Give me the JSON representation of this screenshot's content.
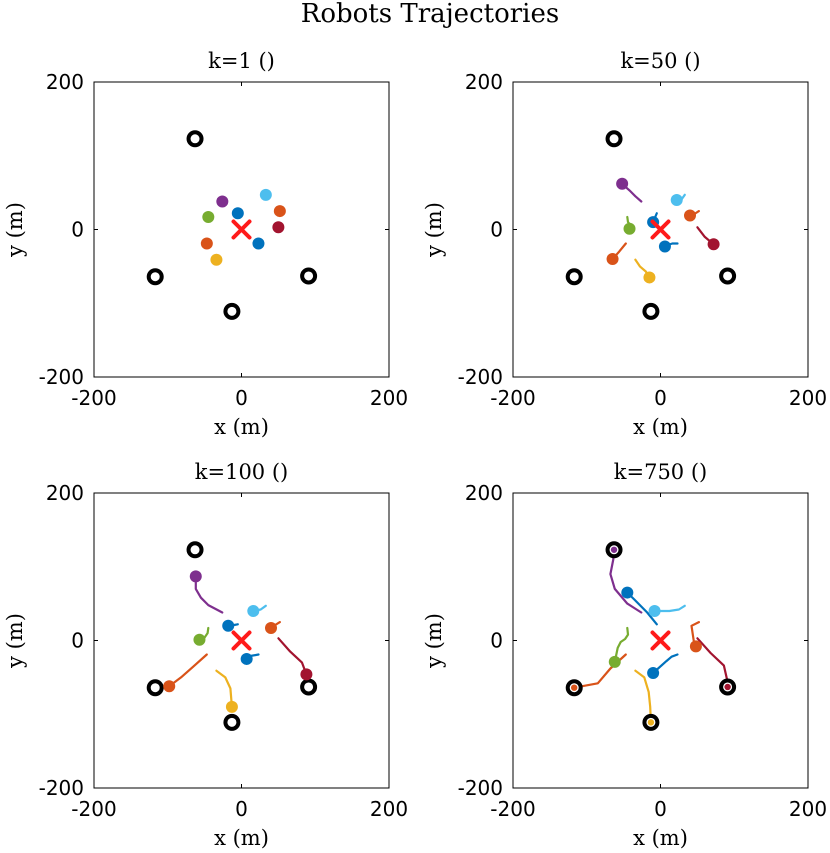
{
  "figure_title": "Robots Trajectories",
  "colors": {
    "axis": "#000000",
    "target": "#ff1a1a",
    "goal": "#000000",
    "robots": [
      "#0072bd",
      "#d95319",
      "#edb120",
      "#7e2f8e",
      "#77ac30",
      "#4dbeee",
      "#a2142f",
      "#0072bd",
      "#d95319"
    ]
  },
  "chart_data": [
    {
      "type": "scatter",
      "title": "k=1 ()",
      "xlabel": "x (m)",
      "ylabel": "y (m)",
      "xlim": [
        -200,
        200
      ],
      "ylim": [
        -200,
        200
      ],
      "xticks": [
        "-200",
        "0",
        "200"
      ],
      "yticks": [
        "-200",
        "0",
        "200"
      ],
      "target": [
        0,
        0
      ],
      "goals": [
        [
          -63,
          123
        ],
        [
          -117,
          -64
        ],
        [
          91,
          -63
        ],
        [
          -13,
          -111
        ]
      ],
      "goal_fill": [
        null,
        null,
        null,
        null
      ],
      "robots": [
        {
          "color": 0,
          "path": [
            [
              -5,
              22
            ]
          ]
        },
        {
          "color": 1,
          "path": [
            [
              52,
              25
            ]
          ]
        },
        {
          "color": 2,
          "path": [
            [
              -34,
              -41
            ]
          ]
        },
        {
          "color": 3,
          "path": [
            [
              -26,
              38
            ]
          ]
        },
        {
          "color": 4,
          "path": [
            [
              -45,
              17
            ]
          ]
        },
        {
          "color": 5,
          "path": [
            [
              33,
              47
            ]
          ]
        },
        {
          "color": 6,
          "path": [
            [
              50,
              3
            ]
          ]
        },
        {
          "color": 7,
          "path": [
            [
              23,
              -19
            ]
          ]
        },
        {
          "color": 8,
          "path": [
            [
              -47,
              -19
            ]
          ]
        }
      ]
    },
    {
      "type": "scatter",
      "title": "k=50 ()",
      "xlabel": "x (m)",
      "ylabel": "y (m)",
      "xlim": [
        -200,
        200
      ],
      "ylim": [
        -200,
        200
      ],
      "xticks": [
        "-200",
        "0",
        "200"
      ],
      "yticks": [
        "-200",
        "0",
        "200"
      ],
      "target": [
        0,
        0
      ],
      "goals": [
        [
          -63,
          123
        ],
        [
          -117,
          -64
        ],
        [
          91,
          -63
        ],
        [
          -13,
          -111
        ]
      ],
      "goal_fill": [
        null,
        null,
        null,
        null
      ],
      "robots": [
        {
          "color": 0,
          "path": [
            [
              -5,
              22
            ],
            [
              -8,
              15
            ],
            [
              -10,
              10
            ]
          ]
        },
        {
          "color": 1,
          "path": [
            [
              52,
              25
            ],
            [
              46,
              21
            ],
            [
              40,
              19
            ]
          ]
        },
        {
          "color": 2,
          "path": [
            [
              -34,
              -41
            ],
            [
              -28,
              -50
            ],
            [
              -20,
              -57
            ],
            [
              -15,
              -65
            ]
          ]
        },
        {
          "color": 3,
          "path": [
            [
              -26,
              38
            ],
            [
              -34,
              45
            ],
            [
              -42,
              53
            ],
            [
              -52,
              62
            ]
          ]
        },
        {
          "color": 4,
          "path": [
            [
              -45,
              17
            ],
            [
              -44,
              10
            ],
            [
              -40,
              5
            ],
            [
              -42,
              1
            ]
          ]
        },
        {
          "color": 5,
          "path": [
            [
              33,
              47
            ],
            [
              28,
              40
            ],
            [
              22,
              40
            ]
          ]
        },
        {
          "color": 6,
          "path": [
            [
              50,
              3
            ],
            [
              60,
              -10
            ],
            [
              72,
              -20
            ]
          ]
        },
        {
          "color": 7,
          "path": [
            [
              23,
              -19
            ],
            [
              16,
              -19
            ],
            [
              10,
              -21
            ],
            [
              6,
              -23
            ]
          ]
        },
        {
          "color": 8,
          "path": [
            [
              -47,
              -19
            ],
            [
              -56,
              -30
            ],
            [
              -65,
              -40
            ]
          ]
        }
      ]
    },
    {
      "type": "scatter",
      "title": "k=100 ()",
      "xlabel": "x (m)",
      "ylabel": "y (m)",
      "xlim": [
        -200,
        200
      ],
      "ylim": [
        -200,
        200
      ],
      "xticks": [
        "-200",
        "0",
        "200"
      ],
      "yticks": [
        "-200",
        "0",
        "200"
      ],
      "target": [
        0,
        0
      ],
      "goals": [
        [
          -63,
          123
        ],
        [
          -117,
          -64
        ],
        [
          91,
          -63
        ],
        [
          -13,
          -111
        ]
      ],
      "goal_fill": [
        null,
        null,
        null,
        null
      ],
      "robots": [
        {
          "color": 0,
          "path": [
            [
              -5,
              22
            ],
            [
              -10,
              21
            ],
            [
              -18,
              20
            ]
          ]
        },
        {
          "color": 1,
          "path": [
            [
              52,
              25
            ],
            [
              44,
              20
            ],
            [
              40,
              17
            ]
          ]
        },
        {
          "color": 2,
          "path": [
            [
              -34,
              -41
            ],
            [
              -22,
              -50
            ],
            [
              -15,
              -65
            ],
            [
              -13,
              -90
            ]
          ]
        },
        {
          "color": 3,
          "path": [
            [
              -26,
              38
            ],
            [
              -45,
              48
            ],
            [
              -55,
              58
            ],
            [
              -62,
              70
            ],
            [
              -62,
              87
            ]
          ]
        },
        {
          "color": 4,
          "path": [
            [
              -45,
              17
            ],
            [
              -46,
              10
            ],
            [
              -50,
              4
            ],
            [
              -57,
              1
            ]
          ]
        },
        {
          "color": 5,
          "path": [
            [
              33,
              47
            ],
            [
              26,
              42
            ],
            [
              16,
              40
            ]
          ]
        },
        {
          "color": 6,
          "path": [
            [
              50,
              3
            ],
            [
              66,
              -15
            ],
            [
              82,
              -30
            ],
            [
              88,
              -46
            ]
          ]
        },
        {
          "color": 7,
          "path": [
            [
              23,
              -19
            ],
            [
              12,
              -21
            ],
            [
              7,
              -25
            ]
          ]
        },
        {
          "color": 8,
          "path": [
            [
              -47,
              -19
            ],
            [
              -65,
              -35
            ],
            [
              -82,
              -50
            ],
            [
              -98,
              -62
            ]
          ]
        }
      ]
    },
    {
      "type": "scatter",
      "title": "k=750 ()",
      "xlabel": "x (m)",
      "ylabel": "y (m)",
      "xlim": [
        -200,
        200
      ],
      "ylim": [
        -200,
        200
      ],
      "xticks": [
        "-200",
        "0",
        "200"
      ],
      "yticks": [
        "-200",
        "0",
        "200"
      ],
      "target": [
        0,
        0
      ],
      "goals": [
        [
          -63,
          123
        ],
        [
          -117,
          -64
        ],
        [
          91,
          -63
        ],
        [
          -13,
          -111
        ]
      ],
      "goal_fill": [
        3,
        8,
        6,
        2
      ],
      "robots": [
        {
          "color": 0,
          "path": [
            [
              -5,
              22
            ],
            [
              -18,
              38
            ],
            [
              -35,
              55
            ],
            [
              -45,
              65
            ]
          ]
        },
        {
          "color": 1,
          "path": [
            [
              52,
              25
            ],
            [
              42,
              20
            ],
            [
              45,
              0
            ],
            [
              48,
              -8
            ]
          ]
        },
        {
          "color": 2,
          "path": [
            [
              -34,
              -41
            ],
            [
              -22,
              -50
            ],
            [
              -16,
              -70
            ],
            [
              -14,
              -90
            ],
            [
              -13,
              -111
            ]
          ]
        },
        {
          "color": 3,
          "path": [
            [
              -26,
              38
            ],
            [
              -45,
              50
            ],
            [
              -62,
              70
            ],
            [
              -68,
              90
            ],
            [
              -64,
              110
            ],
            [
              -63,
              123
            ]
          ]
        },
        {
          "color": 4,
          "path": [
            [
              -45,
              17
            ],
            [
              -44,
              8
            ],
            [
              -48,
              2
            ],
            [
              -54,
              -2
            ],
            [
              -58,
              -10
            ],
            [
              -62,
              -29
            ]
          ]
        },
        {
          "color": 5,
          "path": [
            [
              33,
              47
            ],
            [
              25,
              42
            ],
            [
              12,
              40
            ],
            [
              -8,
              40
            ]
          ]
        },
        {
          "color": 6,
          "path": [
            [
              50,
              3
            ],
            [
              68,
              -17
            ],
            [
              86,
              -34
            ],
            [
              90,
              -52
            ],
            [
              91,
              -63
            ]
          ]
        },
        {
          "color": 7,
          "path": [
            [
              23,
              -19
            ],
            [
              15,
              -22
            ],
            [
              8,
              -28
            ],
            [
              -10,
              -44
            ]
          ]
        },
        {
          "color": 8,
          "path": [
            [
              -47,
              -19
            ],
            [
              -68,
              -38
            ],
            [
              -85,
              -58
            ],
            [
              -117,
              -64
            ]
          ]
        }
      ]
    }
  ]
}
